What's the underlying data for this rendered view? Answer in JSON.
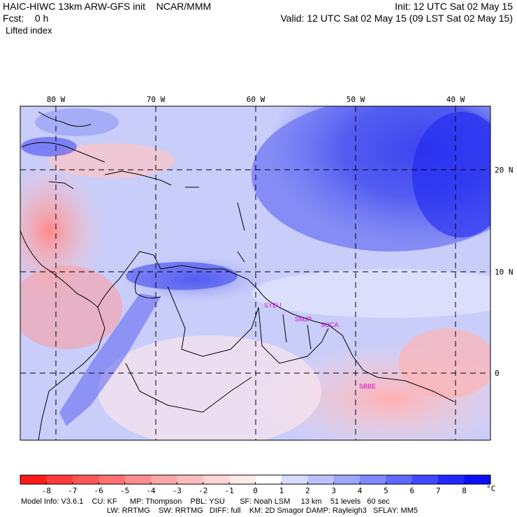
{
  "header": {
    "title": "HAIC-HIWC 13km ARW-GFS init    NCAR/MMM",
    "init": "Init: 12 UTC Sat 02 May 15",
    "fcst": "Fcst:    0 h",
    "valid": "Valid: 12 UTC Sat 02 May 15 (09 LST Sat 02 May 15)",
    "field": "Lifted index"
  },
  "map": {
    "lon_labels": [
      "80 W",
      "70 W",
      "60 W",
      "50 W",
      "40 W"
    ],
    "lat_labels": [
      "20 N",
      "10 N",
      "0"
    ],
    "cities": [
      "SYEU",
      "SMJP",
      "SOCA",
      "SBBE"
    ]
  },
  "colorbar": {
    "ticks": [
      "-8",
      "-7",
      "-6",
      "-5",
      "-4",
      "-3",
      "-2",
      "-1",
      "0",
      "1",
      "2",
      "3",
      "4",
      "5",
      "6",
      "7",
      "8"
    ],
    "unit": "°C",
    "colors": [
      "#ff1a1a",
      "#ff3a3a",
      "#ff5555",
      "#ff7070",
      "#ff8c8c",
      "#ffa6a6",
      "#ffbdbd",
      "#ffd6d6",
      "#ffeaea",
      "#ffffff",
      "#d8dcff",
      "#bcc2ff",
      "#9ea6ff",
      "#7f88ff",
      "#5f68ff",
      "#4048ff",
      "#2028ff",
      "#0a0ff5"
    ]
  },
  "footer": {
    "line1": "Model Info: V3.6.1    CU: KF      MP: Thompson    PBL: YSU       SF: Noah LSM     13 km    51 levels   60 sec",
    "line2": "LW: RRTMG    SW: RRTMG   DIFF: full    KM: 2D Smagor DAMP: Rayleigh3   SFLAY: MM5"
  }
}
